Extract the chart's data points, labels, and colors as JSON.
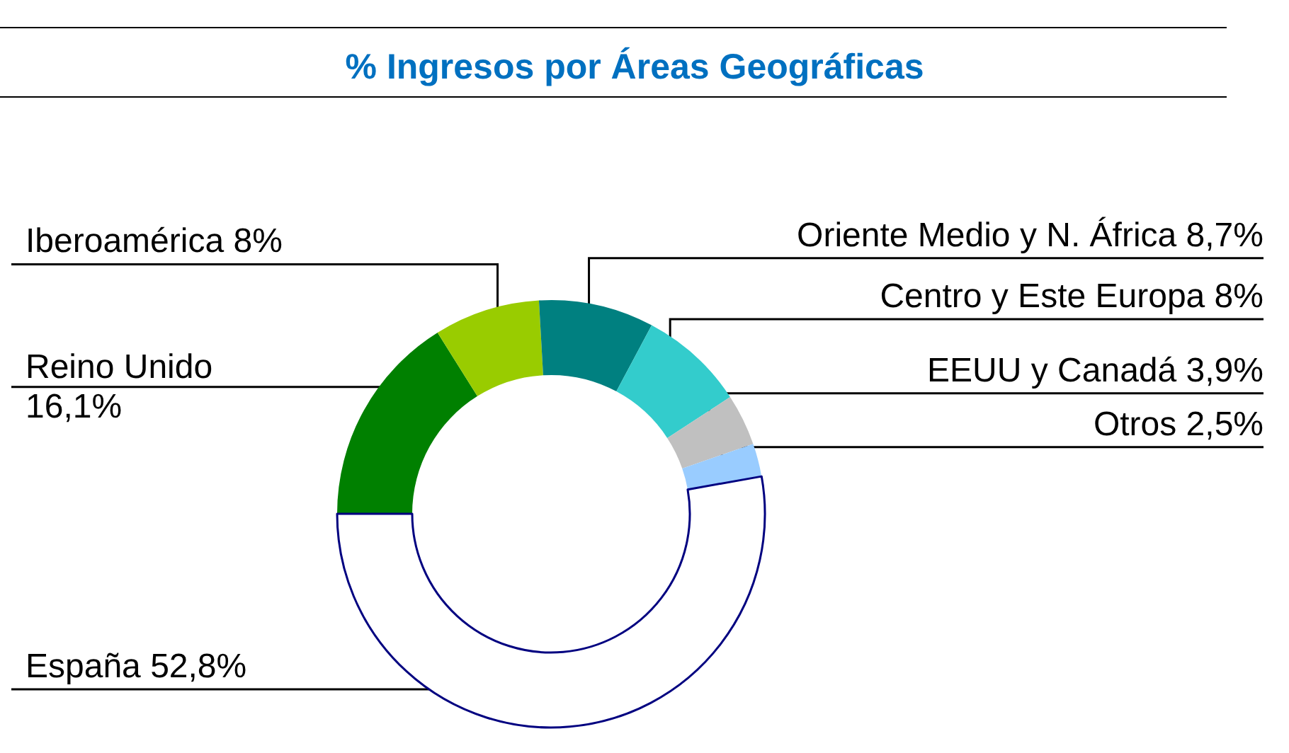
{
  "chart_data": {
    "type": "donut",
    "title": "% Ingresos por Áreas Geográficas",
    "categories": [
      "Reino Unido",
      "Iberoamérica",
      "Oriente Medio y N. África",
      "Centro y Este Europa",
      "EEUU y Canadá",
      "Otros",
      "España"
    ],
    "values": [
      16.1,
      8,
      8.7,
      8,
      3.9,
      2.5,
      52.8
    ],
    "colors": [
      "#008000",
      "#99cc00",
      "#008080",
      "#33cccc",
      "#c0c0c0",
      "#99ccff",
      "#ffffff"
    ],
    "value_labels": [
      "16,1%",
      "8%",
      "8,7%",
      "8%",
      "3,9%",
      "2,5%",
      "52,8%"
    ]
  }
}
